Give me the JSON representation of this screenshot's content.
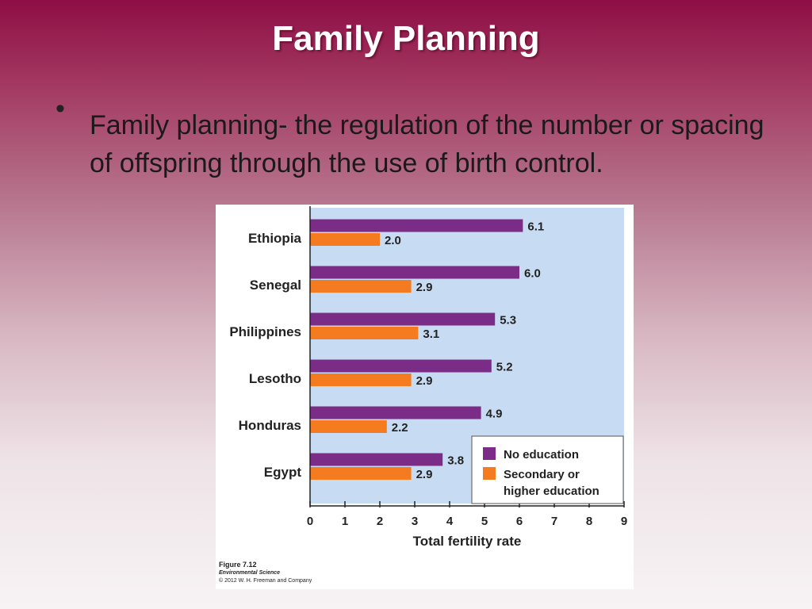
{
  "slide": {
    "title": "Family Planning",
    "bullet_text": "Family planning- the regulation of the number or spacing of offspring through the use of birth control."
  },
  "figure": {
    "caption_figure": "Figure 7.12",
    "caption_source": "Environmental Science",
    "caption_copyright": "© 2012 W. H. Freeman and Company"
  },
  "chart_data": {
    "type": "bar",
    "orientation": "horizontal",
    "categories": [
      "Ethiopia",
      "Senegal",
      "Philippines",
      "Lesotho",
      "Honduras",
      "Egypt"
    ],
    "series": [
      {
        "name": "No education",
        "values": [
          6.1,
          6.0,
          5.3,
          5.2,
          4.9,
          3.8
        ],
        "labels": [
          "6.1",
          "6.0",
          "5.3",
          "5.2",
          "4.9",
          "3.8"
        ],
        "color": "#7b2c87"
      },
      {
        "name": "Secondary or higher education",
        "values": [
          2.0,
          2.9,
          3.1,
          2.9,
          2.2,
          2.9
        ],
        "labels": [
          "2.0",
          "2.9",
          "3.1",
          "2.9",
          "2.2",
          "2.9"
        ],
        "color": "#f47b20"
      }
    ],
    "xlabel": "Total fertility rate",
    "xlim": [
      0,
      9
    ],
    "xticks": [
      "0",
      "1",
      "2",
      "3",
      "4",
      "5",
      "6",
      "7",
      "8",
      "9"
    ],
    "plot_background": "#c7dcf2",
    "grid": false,
    "legend_position": "bottom-right",
    "legend_labels": [
      "No education",
      "Secondary or",
      "higher education"
    ]
  }
}
